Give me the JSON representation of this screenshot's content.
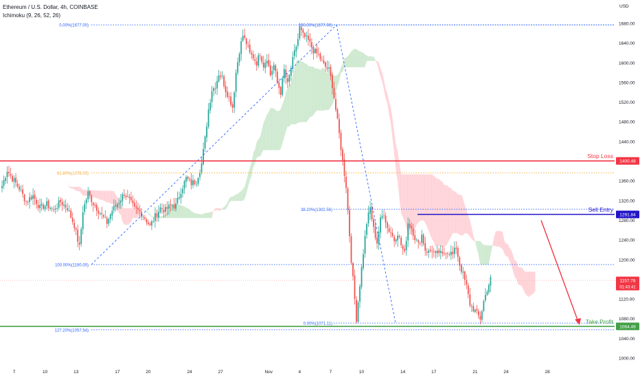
{
  "header": {
    "symbol_line": "Ethereum / U.S. Dollar, 4h, COINBASE",
    "indicator_line": "Ichimoku (9, 26, 52, 26)"
  },
  "chart_data": {
    "type": "candlestick",
    "currency_label": "USD",
    "y_range": [
      985,
      1700
    ],
    "y_ticks": [
      1000,
      1040,
      1080,
      1120,
      1160,
      1200,
      1240,
      1280,
      1320,
      1360,
      1400,
      1440,
      1480,
      1520,
      1560,
      1600,
      1640,
      1680
    ],
    "x_ticks": [
      {
        "label": "7",
        "i": 7
      },
      {
        "label": "10",
        "i": 25
      },
      {
        "label": "13",
        "i": 43
      },
      {
        "label": "17",
        "i": 67
      },
      {
        "label": "20",
        "i": 85
      },
      {
        "label": "24",
        "i": 109
      },
      {
        "label": "27",
        "i": 127
      },
      {
        "label": "Nov",
        "i": 155
      },
      {
        "label": "4",
        "i": 173
      },
      {
        "label": "7",
        "i": 191
      },
      {
        "label": "10",
        "i": 209
      },
      {
        "label": "14",
        "i": 233
      },
      {
        "label": "17",
        "i": 251
      },
      {
        "label": "21",
        "i": 275
      },
      {
        "label": "24",
        "i": 293
      },
      {
        "label": "28",
        "i": 317
      }
    ],
    "close_anchors": [
      [
        0,
        1350
      ],
      [
        3,
        1382
      ],
      [
        6,
        1365
      ],
      [
        10,
        1345
      ],
      [
        14,
        1318
      ],
      [
        18,
        1330
      ],
      [
        22,
        1305
      ],
      [
        26,
        1312
      ],
      [
        30,
        1300
      ],
      [
        34,
        1318
      ],
      [
        38,
        1305
      ],
      [
        42,
        1270
      ],
      [
        45,
        1225
      ],
      [
        47,
        1300
      ],
      [
        50,
        1335
      ],
      [
        53,
        1315
      ],
      [
        57,
        1295
      ],
      [
        61,
        1275
      ],
      [
        64,
        1300
      ],
      [
        68,
        1318
      ],
      [
        71,
        1335
      ],
      [
        74,
        1320
      ],
      [
        77,
        1303
      ],
      [
        80,
        1298
      ],
      [
        83,
        1285
      ],
      [
        86,
        1268
      ],
      [
        89,
        1288
      ],
      [
        92,
        1305
      ],
      [
        95,
        1300
      ],
      [
        98,
        1310
      ],
      [
        101,
        1310
      ],
      [
        104,
        1340
      ],
      [
        107,
        1365
      ],
      [
        110,
        1355
      ],
      [
        113,
        1360
      ],
      [
        116,
        1395
      ],
      [
        118,
        1445
      ],
      [
        120,
        1505
      ],
      [
        122,
        1545
      ],
      [
        124,
        1552
      ],
      [
        126,
        1578
      ],
      [
        128,
        1570
      ],
      [
        130,
        1545
      ],
      [
        132,
        1530
      ],
      [
        134,
        1510
      ],
      [
        136,
        1580
      ],
      [
        138,
        1625
      ],
      [
        140,
        1655
      ],
      [
        142,
        1640
      ],
      [
        144,
        1618
      ],
      [
        146,
        1612
      ],
      [
        148,
        1600
      ],
      [
        150,
        1620
      ],
      [
        152,
        1595
      ],
      [
        154,
        1610
      ],
      [
        156,
        1575
      ],
      [
        158,
        1595
      ],
      [
        160,
        1560
      ],
      [
        162,
        1540
      ],
      [
        164,
        1585
      ],
      [
        166,
        1555
      ],
      [
        168,
        1590
      ],
      [
        170,
        1620
      ],
      [
        172,
        1648
      ],
      [
        173,
        1670
      ],
      [
        175,
        1655
      ],
      [
        178,
        1645
      ],
      [
        181,
        1625
      ],
      [
        184,
        1615
      ],
      [
        187,
        1595
      ],
      [
        190,
        1585
      ],
      [
        192,
        1555
      ],
      [
        194,
        1505
      ],
      [
        196,
        1455
      ],
      [
        198,
        1400
      ],
      [
        200,
        1350
      ],
      [
        201,
        1300
      ],
      [
        203,
        1200
      ],
      [
        205,
        1120
      ],
      [
        206,
        1080
      ],
      [
        208,
        1150
      ],
      [
        210,
        1215
      ],
      [
        212,
        1275
      ],
      [
        214,
        1305
      ],
      [
        216,
        1262
      ],
      [
        218,
        1235
      ],
      [
        220,
        1280
      ],
      [
        222,
        1295
      ],
      [
        224,
        1265
      ],
      [
        226,
        1255
      ],
      [
        228,
        1240
      ],
      [
        230,
        1255
      ],
      [
        232,
        1230
      ],
      [
        234,
        1212
      ],
      [
        236,
        1275
      ],
      [
        238,
        1265
      ],
      [
        240,
        1245
      ],
      [
        242,
        1230
      ],
      [
        244,
        1250
      ],
      [
        246,
        1220
      ],
      [
        248,
        1215
      ],
      [
        250,
        1220
      ],
      [
        252,
        1208
      ],
      [
        254,
        1215
      ],
      [
        256,
        1208
      ],
      [
        258,
        1218
      ],
      [
        260,
        1215
      ],
      [
        262,
        1210
      ],
      [
        264,
        1225
      ],
      [
        266,
        1190
      ],
      [
        268,
        1170
      ],
      [
        270,
        1145
      ],
      [
        272,
        1110
      ],
      [
        274,
        1100
      ],
      [
        276,
        1090
      ],
      [
        278,
        1080
      ],
      [
        280,
        1115
      ],
      [
        282,
        1140
      ],
      [
        284,
        1160
      ]
    ],
    "fibonacci_left": {
      "levels": [
        {
          "label": "0.00%(1677.00)",
          "price": 1677.0
        },
        {
          "label": "61.80%(1376.03)",
          "price": 1376.03
        },
        {
          "label": "100.00%(1190.00)",
          "price": 1190.0
        }
      ]
    },
    "fibonacci_right": {
      "levels": [
        {
          "label": "100.00%(1677.00)",
          "price": 1677.0
        },
        {
          "label": "38.20%(1302.56)",
          "price": 1302.56
        },
        {
          "label": "0.00%(1071.11)",
          "price": 1071.11
        },
        {
          "label": "127.20%(1057.54)",
          "price": 1057.54
        }
      ]
    },
    "stop_loss": {
      "label": "Stop Loss",
      "price": 1400.48,
      "price_label": "1400.48",
      "color": "#f23645"
    },
    "sell_entry": {
      "label": "Sell Entry",
      "price": 1291.84,
      "price_label": "1291.84",
      "color": "#2214c9"
    },
    "take_profit": {
      "label": "Take Profit",
      "price": 1064.49,
      "price_label": "1064.49",
      "color": "#43a047"
    },
    "current_price": {
      "price": 1157.78,
      "price_label": "1157.78",
      "countdown": "01:43:41",
      "color": "#f23645"
    },
    "colors": {
      "up": "#26a69a",
      "down": "#ef5350",
      "fib": "#2962ff",
      "fib_618": "#f5a623",
      "cloud_bull": "#c8e6c9",
      "cloud_bear": "#ffcdd2",
      "arrow": "#f23645"
    }
  }
}
